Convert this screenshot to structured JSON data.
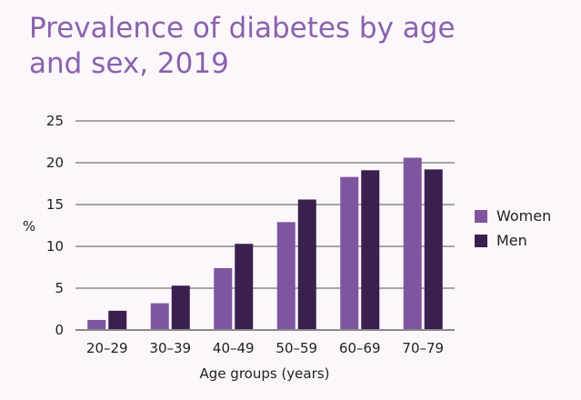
{
  "chart_data": {
    "type": "bar",
    "title": "Prevalence of diabetes by age and sex, 2019",
    "xlabel": "Age groups (years)",
    "ylabel": "%",
    "ylim": [
      0,
      25
    ],
    "yticks": [
      0,
      5,
      10,
      15,
      20,
      25
    ],
    "grid": true,
    "legend_position": "right",
    "categories": [
      "20–29",
      "30–39",
      "40–49",
      "50–59",
      "60–69",
      "70–79"
    ],
    "series": [
      {
        "name": "Women",
        "color": "#7f55a0",
        "values": [
          1.2,
          3.2,
          7.4,
          12.9,
          18.3,
          20.6
        ]
      },
      {
        "name": "Men",
        "color": "#3a1f4f",
        "values": [
          2.3,
          5.3,
          10.3,
          15.6,
          19.1,
          19.2
        ]
      }
    ]
  }
}
